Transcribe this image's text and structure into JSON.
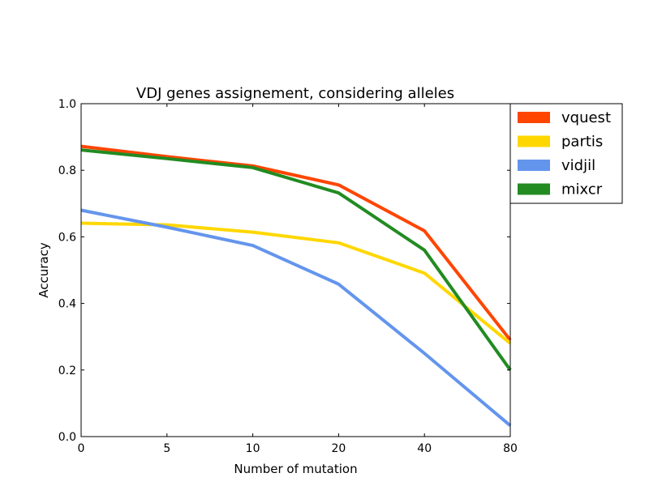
{
  "chart_data": {
    "type": "line",
    "title": "VDJ genes assignement, considering alleles",
    "xlabel": "Number of mutation",
    "ylabel": "Accuracy",
    "categories": [
      "0",
      "5",
      "10",
      "20",
      "40",
      "80"
    ],
    "ylim": [
      0.0,
      1.0
    ],
    "yticks": [
      "0.0",
      "0.2",
      "0.4",
      "0.6",
      "0.8",
      "1.0"
    ],
    "grid": false,
    "legend_position": "outside-top-right",
    "series": [
      {
        "name": "vquest",
        "color": "#ff4500",
        "values": [
          0.872,
          0.841,
          0.813,
          0.756,
          0.618,
          0.29
        ]
      },
      {
        "name": "partis",
        "color": "#ffd700",
        "values": [
          0.641,
          0.636,
          0.614,
          0.582,
          0.491,
          0.28
        ]
      },
      {
        "name": "vidjil",
        "color": "#6495ed",
        "values": [
          0.68,
          0.629,
          0.574,
          0.458,
          0.25,
          0.033
        ]
      },
      {
        "name": "mixcr",
        "color": "#228b22",
        "values": [
          0.861,
          0.835,
          0.808,
          0.732,
          0.56,
          0.2
        ]
      }
    ]
  }
}
